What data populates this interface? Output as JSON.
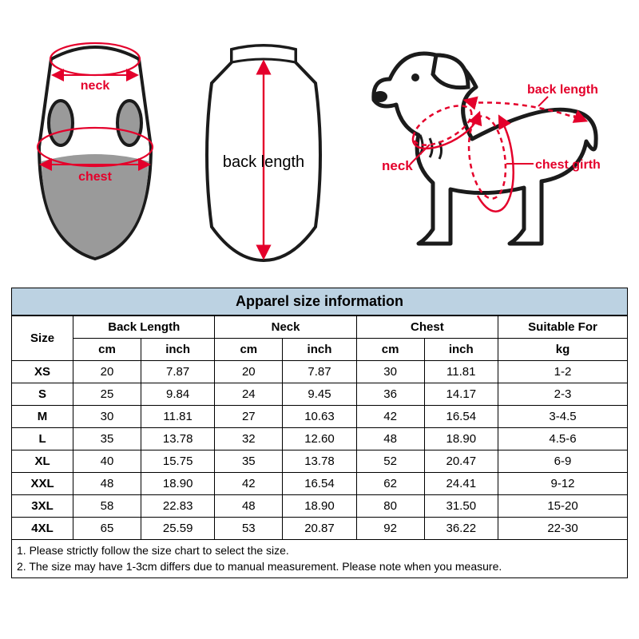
{
  "diagram": {
    "front_labels": {
      "neck": "neck",
      "chest": "chest"
    },
    "back_labels": {
      "back_length": "back length"
    },
    "dog_labels": {
      "neck": "neck",
      "back_length": "back length",
      "chest_girth": "chest girth"
    },
    "accent_color": "#e4002b",
    "line_color": "#1b1b1b",
    "grey_fill": "#9a9a9a",
    "body_fill": "#ffffff"
  },
  "table": {
    "title": "Apparel  size  information",
    "title_bg": "#bcd2e2",
    "header_top": [
      "Size",
      "Back Length",
      "Neck",
      "Chest",
      "Suitable For"
    ],
    "header_sub": [
      "cm",
      "inch",
      "cm",
      "inch",
      "cm",
      "inch",
      "kg"
    ],
    "rows": [
      [
        "XS",
        "20",
        "7.87",
        "20",
        "7.87",
        "30",
        "11.81",
        "1-2"
      ],
      [
        "S",
        "25",
        "9.84",
        "24",
        "9.45",
        "36",
        "14.17",
        "2-3"
      ],
      [
        "M",
        "30",
        "11.81",
        "27",
        "10.63",
        "42",
        "16.54",
        "3-4.5"
      ],
      [
        "L",
        "35",
        "13.78",
        "32",
        "12.60",
        "48",
        "18.90",
        "4.5-6"
      ],
      [
        "XL",
        "40",
        "15.75",
        "35",
        "13.78",
        "52",
        "20.47",
        "6-9"
      ],
      [
        "XXL",
        "48",
        "18.90",
        "42",
        "16.54",
        "62",
        "24.41",
        "9-12"
      ],
      [
        "3XL",
        "58",
        "22.83",
        "48",
        "18.90",
        "80",
        "31.50",
        "15-20"
      ],
      [
        "4XL",
        "65",
        "25.59",
        "53",
        "20.87",
        "92",
        "36.22",
        "22-30"
      ]
    ]
  },
  "notes": {
    "line1": "1. Please strictly follow the size chart  to select the size.",
    "line2": "2. The size may have 1-3cm differs due to manual measurement. Please note when you measure."
  }
}
